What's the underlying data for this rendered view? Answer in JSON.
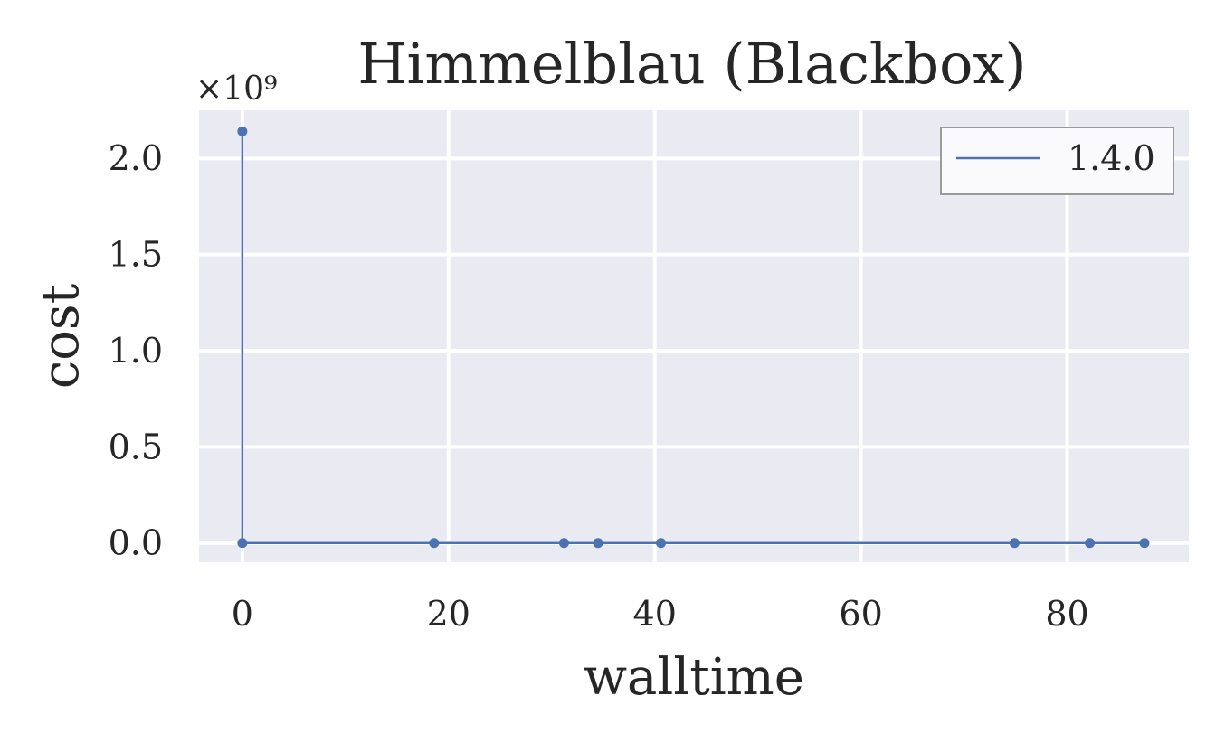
{
  "chart_data": {
    "type": "line",
    "title": "Himmelblau (Blackbox)",
    "xlabel": "walltime",
    "ylabel": "cost",
    "y_offset_text": "×10⁹",
    "xlim": [
      -4.2,
      91.8
    ],
    "ylim": [
      -0.1,
      2.25
    ],
    "xticks": [
      0,
      20,
      40,
      60,
      80
    ],
    "xtick_labels": [
      "0",
      "20",
      "40",
      "60",
      "80"
    ],
    "yticks": [
      0.0,
      0.5,
      1.0,
      1.5,
      2.0
    ],
    "ytick_labels": [
      "0.0",
      "0.5",
      "1.0",
      "1.5",
      "2.0"
    ],
    "grid": true,
    "legend_position": "top-right",
    "series": [
      {
        "name": "1.4.0",
        "color": "#4c72b0",
        "x": [
          0.0,
          0.0,
          18.6,
          31.2,
          34.5,
          40.6,
          74.9,
          82.2,
          87.5
        ],
        "y": [
          2.14,
          0.0,
          0.0,
          0.0,
          0.0,
          0.0,
          0.0,
          0.0,
          0.0
        ]
      }
    ]
  }
}
